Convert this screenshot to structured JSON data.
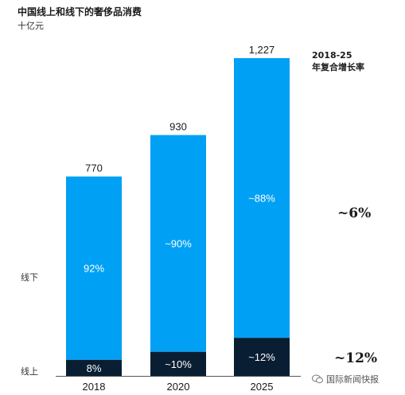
{
  "title": "中国线上和线下的奢侈品消费",
  "unit": "十亿元",
  "cagr_header": [
    "2018-25",
    "年复合增长率"
  ],
  "cagr_offline": "~6%",
  "cagr_online": "~12%",
  "row_labels": {
    "offline": "线下",
    "online": "线上"
  },
  "watermark": "国际新闻快报",
  "colors": {
    "offline": "#00a0f5",
    "online": "#0a1e33"
  },
  "chart_data": {
    "type": "bar",
    "stacked": true,
    "categories": [
      "2018",
      "2020",
      "2025"
    ],
    "totals": [
      770,
      930,
      1227
    ],
    "total_labels": [
      "770",
      "930",
      "1,227"
    ],
    "series": [
      {
        "name": "线上",
        "values": [
          62,
          93,
          147
        ],
        "labels": [
          "8%",
          "~10%",
          "~12%"
        ]
      },
      {
        "name": "线下",
        "values": [
          708,
          837,
          1080
        ],
        "labels": [
          "92%",
          "~90%",
          "~88%"
        ]
      }
    ],
    "ylim": [
      0,
      1227
    ],
    "grid": false
  }
}
